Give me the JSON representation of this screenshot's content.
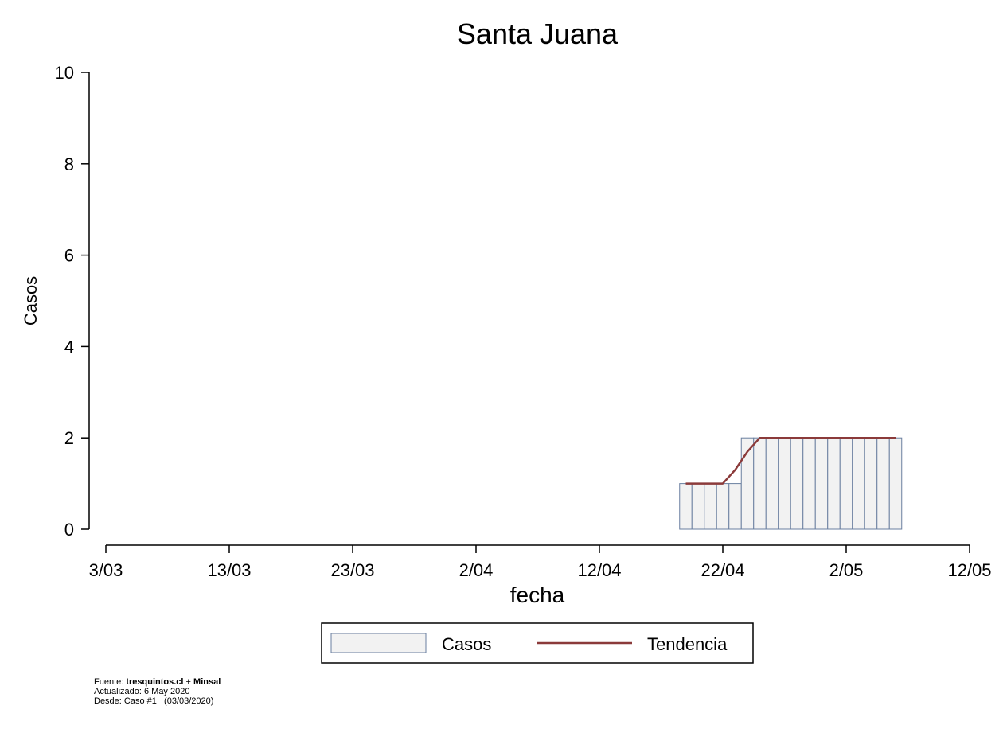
{
  "chart_data": {
    "type": "bar",
    "title": "Santa Juana",
    "xlabel": "fecha",
    "ylabel": "Casos",
    "ylim": [
      0,
      10
    ],
    "yticks": [
      0,
      2,
      4,
      6,
      8,
      10
    ],
    "xlim": [
      "2020-03-03",
      "2020-05-12"
    ],
    "xticks": [
      {
        "date": "2020-03-03",
        "label": "3/03"
      },
      {
        "date": "2020-03-13",
        "label": "13/03"
      },
      {
        "date": "2020-03-23",
        "label": "23/03"
      },
      {
        "date": "2020-04-02",
        "label": "2/04"
      },
      {
        "date": "2020-04-12",
        "label": "12/04"
      },
      {
        "date": "2020-04-22",
        "label": "22/04"
      },
      {
        "date": "2020-05-02",
        "label": "2/05"
      },
      {
        "date": "2020-05-12",
        "label": "12/05"
      }
    ],
    "grid": false,
    "legend_position": "bottom",
    "series": [
      {
        "name": "Casos",
        "kind": "bar",
        "color": "#f2f2f2",
        "edge_color": "#6a7fa0",
        "points": [
          {
            "date": "2020-04-19",
            "value": 1
          },
          {
            "date": "2020-04-20",
            "value": 1
          },
          {
            "date": "2020-04-21",
            "value": 1
          },
          {
            "date": "2020-04-22",
            "value": 1
          },
          {
            "date": "2020-04-23",
            "value": 1
          },
          {
            "date": "2020-04-24",
            "value": 2
          },
          {
            "date": "2020-04-25",
            "value": 2
          },
          {
            "date": "2020-04-26",
            "value": 2
          },
          {
            "date": "2020-04-27",
            "value": 2
          },
          {
            "date": "2020-04-28",
            "value": 2
          },
          {
            "date": "2020-04-29",
            "value": 2
          },
          {
            "date": "2020-04-30",
            "value": 2
          },
          {
            "date": "2020-05-01",
            "value": 2
          },
          {
            "date": "2020-05-02",
            "value": 2
          },
          {
            "date": "2020-05-03",
            "value": 2
          },
          {
            "date": "2020-05-04",
            "value": 2
          },
          {
            "date": "2020-05-05",
            "value": 2
          },
          {
            "date": "2020-05-06",
            "value": 2
          }
        ]
      },
      {
        "name": "Tendencia",
        "kind": "line",
        "color": "#8b3a3a",
        "points": [
          {
            "date": "2020-04-19",
            "value": 1
          },
          {
            "date": "2020-04-20",
            "value": 1
          },
          {
            "date": "2020-04-21",
            "value": 1
          },
          {
            "date": "2020-04-22",
            "value": 1
          },
          {
            "date": "2020-04-23",
            "value": 1.3
          },
          {
            "date": "2020-04-24",
            "value": 1.7
          },
          {
            "date": "2020-04-25",
            "value": 2
          },
          {
            "date": "2020-04-26",
            "value": 2
          },
          {
            "date": "2020-04-27",
            "value": 2
          },
          {
            "date": "2020-04-28",
            "value": 2
          },
          {
            "date": "2020-04-29",
            "value": 2
          },
          {
            "date": "2020-04-30",
            "value": 2
          },
          {
            "date": "2020-05-01",
            "value": 2
          },
          {
            "date": "2020-05-02",
            "value": 2
          },
          {
            "date": "2020-05-03",
            "value": 2
          },
          {
            "date": "2020-05-04",
            "value": 2
          },
          {
            "date": "2020-05-05",
            "value": 2
          },
          {
            "date": "2020-05-06",
            "value": 2
          }
        ]
      }
    ]
  },
  "footer": {
    "source_prefix": "Fuente: ",
    "source_site": "tresquintos.cl",
    "source_sep": " + ",
    "source_org": "Minsal",
    "updated": "Actualizado: 6 May 2020",
    "since": "Desde: Caso #1   (03/03/2020)"
  }
}
